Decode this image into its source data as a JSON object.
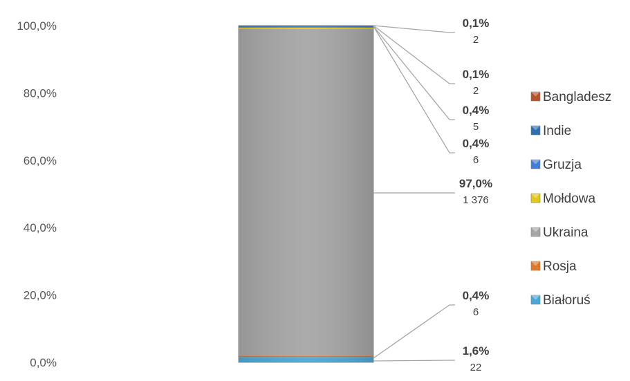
{
  "chart_data": {
    "type": "bar",
    "stacked": true,
    "percent_stacked": true,
    "categories": [
      ""
    ],
    "y_ticks": [
      "0,0%",
      "20,0%",
      "40,0%",
      "60,0%",
      "80,0%",
      "100,0%"
    ],
    "ylim": [
      0,
      100
    ],
    "grid": false,
    "legend_position": "right",
    "series": [
      {
        "name": "Białoruś",
        "percent": 1.6,
        "count": 22,
        "percent_label": "1,6%",
        "count_label": "22",
        "color": "#4aa8d8"
      },
      {
        "name": "Rosja",
        "percent": 0.4,
        "count": 6,
        "percent_label": "0,4%",
        "count_label": "6",
        "color": "#e0792a"
      },
      {
        "name": "Ukraina",
        "percent": 97.0,
        "count": 1376,
        "percent_label": "97,0%",
        "count_label": "1 376",
        "color": "#a6a6a6"
      },
      {
        "name": "Mołdowa",
        "percent": 0.4,
        "count": 6,
        "percent_label": "0,4%",
        "count_label": "6",
        "color": "#e6c619"
      },
      {
        "name": "Gruzja",
        "percent": 0.4,
        "count": 5,
        "percent_label": "0,4%",
        "count_label": "5",
        "color": "#3f7fd6"
      },
      {
        "name": "Indie",
        "percent": 0.1,
        "count": 2,
        "percent_label": "0,1%",
        "count_label": "2",
        "color": "#2e6fae"
      },
      {
        "name": "Bangladesz",
        "percent": 0.1,
        "count": 2,
        "percent_label": "0,1%",
        "count_label": "2",
        "color": "#b5532a"
      }
    ],
    "legend_order": [
      "Bangladesz",
      "Indie",
      "Gruzja",
      "Mołdowa",
      "Ukraina",
      "Rosja",
      "Białoruś"
    ]
  }
}
